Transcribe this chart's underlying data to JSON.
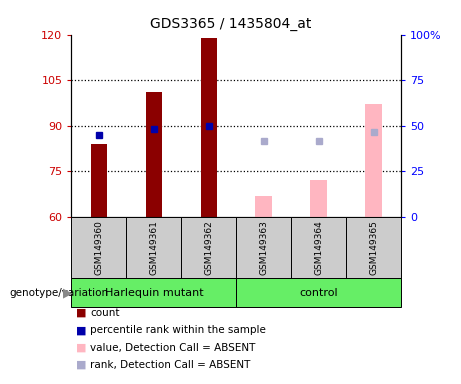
{
  "title": "GDS3365 / 1435804_at",
  "samples": [
    "GSM149360",
    "GSM149361",
    "GSM149362",
    "GSM149363",
    "GSM149364",
    "GSM149365"
  ],
  "absent": [
    false,
    false,
    false,
    true,
    true,
    true
  ],
  "count_values": [
    84,
    101,
    119,
    67,
    72,
    97
  ],
  "rank_values": [
    87,
    89,
    90,
    85,
    85,
    88
  ],
  "ylim_left": [
    60,
    120
  ],
  "ylim_right": [
    0,
    100
  ],
  "yticks_left": [
    60,
    75,
    90,
    105,
    120
  ],
  "yticks_right": [
    0,
    25,
    50,
    75,
    100
  ],
  "ytick_labels_left": [
    "60",
    "75",
    "90",
    "105",
    "120"
  ],
  "ytick_labels_right": [
    "0",
    "25",
    "50",
    "75",
    "100%"
  ],
  "color_count_present": "#8B0000",
  "color_rank_present": "#0000AA",
  "color_count_absent": "#FFB6C1",
  "color_rank_absent": "#AAAACC",
  "hline_values": [
    75,
    90,
    105
  ],
  "group_ranges": [
    [
      0,
      2,
      "Harlequin mutant"
    ],
    [
      3,
      5,
      "control"
    ]
  ],
  "green_color": "#66EE66",
  "gray_color": "#CCCCCC",
  "legend_items": [
    "count",
    "percentile rank within the sample",
    "value, Detection Call = ABSENT",
    "rank, Detection Call = ABSENT"
  ],
  "legend_colors": [
    "#8B0000",
    "#0000AA",
    "#FFB6C1",
    "#AAAACC"
  ],
  "genotype_label": "genotype/variation"
}
